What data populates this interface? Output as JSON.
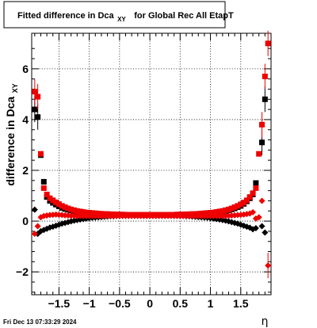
{
  "chart_data": {
    "type": "scatter",
    "title": {
      "main": "Fitted difference in Dca",
      "sub": "XY",
      "rest": "for Global Rec All EtapT"
    },
    "ylabel": {
      "main": "difference in Dca",
      "sub": "XY"
    },
    "xlabel": "η",
    "xlim": [
      -1.95,
      2.0
    ],
    "ylim": [
      -2.9,
      7.4
    ],
    "xticks": [
      -1.5,
      -1,
      -0.5,
      0,
      0.5,
      1,
      1.5
    ],
    "xtick_labels": [
      "−1.5",
      "−1",
      "−0.5",
      "0",
      "0.5",
      "1",
      "1.5"
    ],
    "yticks": [
      -2,
      0,
      2,
      4,
      6
    ],
    "ytick_labels": [
      "−2",
      "0",
      "2",
      "4",
      "6"
    ],
    "grid": true,
    "colors": {
      "black": "#000000",
      "red": "#ee0000"
    },
    "series": [
      {
        "marker": "square",
        "color": "#000000",
        "points": [
          [
            -1.9,
            4.4
          ],
          [
            -1.85,
            4.1
          ],
          [
            -1.8,
            2.6
          ],
          [
            -1.75,
            1.55
          ],
          [
            -1.7,
            0.95
          ],
          [
            -1.65,
            0.8
          ],
          [
            -1.6,
            0.72
          ],
          [
            -1.55,
            0.65
          ],
          [
            -1.5,
            0.58
          ],
          [
            -1.45,
            0.52
          ],
          [
            -1.4,
            0.48
          ],
          [
            -1.35,
            0.45
          ],
          [
            -1.3,
            0.42
          ],
          [
            -1.25,
            0.4
          ],
          [
            -1.2,
            0.38
          ],
          [
            -1.15,
            0.36
          ],
          [
            -1.1,
            0.34
          ],
          [
            -1.05,
            0.33
          ],
          [
            -1.0,
            0.32
          ],
          [
            -0.95,
            0.31
          ],
          [
            -0.9,
            0.3
          ],
          [
            -0.85,
            0.29
          ],
          [
            -0.8,
            0.28
          ],
          [
            -0.75,
            0.28
          ],
          [
            -0.7,
            0.27
          ],
          [
            -0.65,
            0.27
          ],
          [
            -0.6,
            0.26
          ],
          [
            -0.55,
            0.26
          ],
          [
            -0.5,
            0.25
          ],
          [
            -0.45,
            0.25
          ],
          [
            -0.4,
            0.25
          ],
          [
            -0.35,
            0.25
          ],
          [
            -0.3,
            0.24
          ],
          [
            -0.25,
            0.24
          ],
          [
            -0.2,
            0.24
          ],
          [
            -0.15,
            0.24
          ],
          [
            -0.1,
            0.24
          ],
          [
            -0.05,
            0.24
          ],
          [
            0.0,
            0.24
          ],
          [
            0.05,
            0.24
          ],
          [
            0.1,
            0.24
          ],
          [
            0.15,
            0.24
          ],
          [
            0.2,
            0.24
          ],
          [
            0.25,
            0.24
          ],
          [
            0.3,
            0.24
          ],
          [
            0.35,
            0.25
          ],
          [
            0.4,
            0.25
          ],
          [
            0.45,
            0.25
          ],
          [
            0.5,
            0.25
          ],
          [
            0.55,
            0.26
          ],
          [
            0.6,
            0.26
          ],
          [
            0.65,
            0.27
          ],
          [
            0.7,
            0.27
          ],
          [
            0.75,
            0.28
          ],
          [
            0.8,
            0.28
          ],
          [
            0.85,
            0.29
          ],
          [
            0.9,
            0.3
          ],
          [
            0.95,
            0.31
          ],
          [
            1.0,
            0.32
          ],
          [
            1.05,
            0.33
          ],
          [
            1.1,
            0.34
          ],
          [
            1.15,
            0.36
          ],
          [
            1.2,
            0.38
          ],
          [
            1.25,
            0.4
          ],
          [
            1.3,
            0.43
          ],
          [
            1.35,
            0.46
          ],
          [
            1.4,
            0.5
          ],
          [
            1.45,
            0.55
          ],
          [
            1.5,
            0.6
          ],
          [
            1.55,
            0.68
          ],
          [
            1.6,
            0.78
          ],
          [
            1.65,
            0.9
          ],
          [
            1.7,
            1.05
          ],
          [
            1.75,
            1.5
          ],
          [
            1.85,
            3.1
          ],
          [
            1.9,
            4.8
          ]
        ]
      },
      {
        "marker": "diamond",
        "color": "#000000",
        "points": [
          [
            -1.9,
            0.45
          ],
          [
            -1.85,
            -0.5
          ],
          [
            -1.8,
            -0.4
          ],
          [
            -1.75,
            -0.35
          ],
          [
            -1.7,
            -0.3
          ],
          [
            -1.65,
            -0.25
          ],
          [
            -1.6,
            -0.22
          ],
          [
            -1.55,
            -0.18
          ],
          [
            -1.5,
            -0.14
          ],
          [
            -1.45,
            -0.1
          ],
          [
            -1.4,
            -0.07
          ],
          [
            -1.35,
            -0.04
          ],
          [
            -1.3,
            -0.01
          ],
          [
            -1.25,
            0.02
          ],
          [
            -1.2,
            0.04
          ],
          [
            -1.15,
            0.06
          ],
          [
            -1.1,
            0.08
          ],
          [
            -1.05,
            0.1
          ],
          [
            -1.0,
            0.12
          ],
          [
            -0.95,
            0.13
          ],
          [
            -0.9,
            0.14
          ],
          [
            -0.85,
            0.15
          ],
          [
            -0.8,
            0.16
          ],
          [
            -0.75,
            0.17
          ],
          [
            -0.7,
            0.18
          ],
          [
            -0.65,
            0.19
          ],
          [
            -0.6,
            0.19
          ],
          [
            -0.55,
            0.2
          ],
          [
            -0.5,
            0.2
          ],
          [
            -0.45,
            0.21
          ],
          [
            -0.4,
            0.21
          ],
          [
            -0.35,
            0.22
          ],
          [
            -0.3,
            0.22
          ],
          [
            -0.25,
            0.22
          ],
          [
            -0.2,
            0.22
          ],
          [
            -0.15,
            0.22
          ],
          [
            -0.1,
            0.22
          ],
          [
            -0.05,
            0.22
          ],
          [
            0.0,
            0.22
          ],
          [
            0.05,
            0.22
          ],
          [
            0.1,
            0.22
          ],
          [
            0.15,
            0.22
          ],
          [
            0.2,
            0.22
          ],
          [
            0.25,
            0.22
          ],
          [
            0.3,
            0.22
          ],
          [
            0.35,
            0.22
          ],
          [
            0.4,
            0.21
          ],
          [
            0.45,
            0.21
          ],
          [
            0.5,
            0.2
          ],
          [
            0.55,
            0.2
          ],
          [
            0.6,
            0.19
          ],
          [
            0.65,
            0.19
          ],
          [
            0.7,
            0.18
          ],
          [
            0.75,
            0.17
          ],
          [
            0.8,
            0.16
          ],
          [
            0.85,
            0.15
          ],
          [
            0.9,
            0.14
          ],
          [
            0.95,
            0.13
          ],
          [
            1.0,
            0.12
          ],
          [
            1.05,
            0.1
          ],
          [
            1.1,
            0.08
          ],
          [
            1.15,
            0.06
          ],
          [
            1.2,
            0.04
          ],
          [
            1.25,
            0.02
          ],
          [
            1.3,
            -0.01
          ],
          [
            1.35,
            -0.04
          ],
          [
            1.4,
            -0.07
          ],
          [
            1.45,
            -0.1
          ],
          [
            1.5,
            -0.14
          ],
          [
            1.55,
            -0.18
          ],
          [
            1.6,
            -0.22
          ],
          [
            1.65,
            -0.26
          ],
          [
            1.7,
            -0.32
          ],
          [
            1.75,
            -0.28
          ],
          [
            1.85,
            -0.2
          ],
          [
            1.9,
            -0.45
          ]
        ]
      },
      {
        "marker": "square",
        "color": "#ee0000",
        "points": [
          [
            -1.9,
            5.1
          ],
          [
            -1.85,
            4.9
          ],
          [
            -1.8,
            2.65
          ],
          [
            -1.75,
            1.3
          ],
          [
            -1.7,
            1.05
          ],
          [
            -1.65,
            0.9
          ],
          [
            -1.6,
            0.82
          ],
          [
            -1.55,
            0.74
          ],
          [
            -1.5,
            0.67
          ],
          [
            -1.45,
            0.6
          ],
          [
            -1.4,
            0.55
          ],
          [
            -1.35,
            0.5
          ],
          [
            -1.3,
            0.46
          ],
          [
            -1.25,
            0.43
          ],
          [
            -1.2,
            0.4
          ],
          [
            -1.15,
            0.38
          ],
          [
            -1.1,
            0.36
          ],
          [
            -1.05,
            0.34
          ],
          [
            -1.0,
            0.33
          ],
          [
            -0.95,
            0.32
          ],
          [
            -0.9,
            0.31
          ],
          [
            -0.85,
            0.3
          ],
          [
            -0.8,
            0.29
          ],
          [
            -0.75,
            0.28
          ],
          [
            -0.7,
            0.28
          ],
          [
            -0.65,
            0.27
          ],
          [
            -0.6,
            0.27
          ],
          [
            -0.55,
            0.26
          ],
          [
            -0.5,
            0.26
          ],
          [
            -0.45,
            0.26
          ],
          [
            -0.4,
            0.25
          ],
          [
            -0.35,
            0.25
          ],
          [
            -0.3,
            0.25
          ],
          [
            -0.25,
            0.25
          ],
          [
            -0.2,
            0.25
          ],
          [
            -0.15,
            0.25
          ],
          [
            -0.1,
            0.25
          ],
          [
            -0.05,
            0.25
          ],
          [
            0.0,
            0.25
          ],
          [
            0.05,
            0.25
          ],
          [
            0.1,
            0.25
          ],
          [
            0.15,
            0.25
          ],
          [
            0.2,
            0.25
          ],
          [
            0.25,
            0.25
          ],
          [
            0.3,
            0.25
          ],
          [
            0.35,
            0.25
          ],
          [
            0.4,
            0.25
          ],
          [
            0.45,
            0.26
          ],
          [
            0.5,
            0.26
          ],
          [
            0.55,
            0.26
          ],
          [
            0.6,
            0.27
          ],
          [
            0.65,
            0.27
          ],
          [
            0.7,
            0.28
          ],
          [
            0.75,
            0.28
          ],
          [
            0.8,
            0.29
          ],
          [
            0.85,
            0.3
          ],
          [
            0.9,
            0.31
          ],
          [
            0.95,
            0.32
          ],
          [
            1.0,
            0.33
          ],
          [
            1.05,
            0.34
          ],
          [
            1.1,
            0.36
          ],
          [
            1.15,
            0.38
          ],
          [
            1.2,
            0.4
          ],
          [
            1.25,
            0.43
          ],
          [
            1.3,
            0.46
          ],
          [
            1.35,
            0.5
          ],
          [
            1.4,
            0.55
          ],
          [
            1.45,
            0.6
          ],
          [
            1.5,
            0.66
          ],
          [
            1.55,
            0.73
          ],
          [
            1.6,
            0.82
          ],
          [
            1.65,
            0.95
          ],
          [
            1.7,
            1.1
          ],
          [
            1.75,
            1.3
          ],
          [
            1.8,
            2.65
          ],
          [
            1.85,
            3.8
          ],
          [
            1.9,
            5.7
          ],
          [
            1.95,
            7.0
          ]
        ]
      },
      {
        "marker": "diamond",
        "color": "#ee0000",
        "points": [
          [
            -1.9,
            -0.5
          ],
          [
            -1.85,
            -0.2
          ],
          [
            -1.8,
            0.15
          ],
          [
            -1.75,
            0.2
          ],
          [
            -1.7,
            0.22
          ],
          [
            -1.65,
            0.24
          ],
          [
            -1.6,
            0.25
          ],
          [
            -1.55,
            0.26
          ],
          [
            -1.5,
            0.25
          ],
          [
            -1.45,
            0.24
          ],
          [
            -1.4,
            0.23
          ],
          [
            -1.35,
            0.22
          ],
          [
            -1.3,
            0.21
          ],
          [
            -1.25,
            0.21
          ],
          [
            -1.2,
            0.2
          ],
          [
            -1.15,
            0.2
          ],
          [
            -1.1,
            0.2
          ],
          [
            -1.05,
            0.2
          ],
          [
            -1.0,
            0.2
          ],
          [
            -0.95,
            0.2
          ],
          [
            -0.9,
            0.2
          ],
          [
            -0.85,
            0.2
          ],
          [
            -0.8,
            0.2
          ],
          [
            -0.75,
            0.2
          ],
          [
            -0.7,
            0.2
          ],
          [
            -0.65,
            0.2
          ],
          [
            -0.6,
            0.2
          ],
          [
            -0.55,
            0.2
          ],
          [
            -0.5,
            0.2
          ],
          [
            -0.45,
            0.2
          ],
          [
            -0.4,
            0.2
          ],
          [
            -0.35,
            0.2
          ],
          [
            -0.3,
            0.2
          ],
          [
            -0.25,
            0.2
          ],
          [
            -0.2,
            0.2
          ],
          [
            -0.15,
            0.2
          ],
          [
            -0.1,
            0.2
          ],
          [
            -0.05,
            0.2
          ],
          [
            0.0,
            0.2
          ],
          [
            0.05,
            0.2
          ],
          [
            0.1,
            0.2
          ],
          [
            0.15,
            0.2
          ],
          [
            0.2,
            0.2
          ],
          [
            0.25,
            0.2
          ],
          [
            0.3,
            0.2
          ],
          [
            0.35,
            0.2
          ],
          [
            0.4,
            0.2
          ],
          [
            0.45,
            0.2
          ],
          [
            0.5,
            0.2
          ],
          [
            0.55,
            0.2
          ],
          [
            0.6,
            0.2
          ],
          [
            0.65,
            0.2
          ],
          [
            0.7,
            0.2
          ],
          [
            0.75,
            0.2
          ],
          [
            0.8,
            0.2
          ],
          [
            0.85,
            0.2
          ],
          [
            0.9,
            0.2
          ],
          [
            0.95,
            0.2
          ],
          [
            1.0,
            0.2
          ],
          [
            1.05,
            0.2
          ],
          [
            1.1,
            0.2
          ],
          [
            1.15,
            0.2
          ],
          [
            1.2,
            0.2
          ],
          [
            1.25,
            0.21
          ],
          [
            1.3,
            0.21
          ],
          [
            1.35,
            0.22
          ],
          [
            1.4,
            0.23
          ],
          [
            1.45,
            0.24
          ],
          [
            1.5,
            0.25
          ],
          [
            1.55,
            0.26
          ],
          [
            1.6,
            0.28
          ],
          [
            1.65,
            0.3
          ],
          [
            1.7,
            0.35
          ],
          [
            1.75,
            0.1
          ],
          [
            1.8,
            0.15
          ],
          [
            1.85,
            0.8
          ],
          [
            1.95,
            -1.75
          ]
        ]
      }
    ]
  },
  "footer": {
    "timestamp": "Fri Dec 13 07:33:29 2024"
  }
}
